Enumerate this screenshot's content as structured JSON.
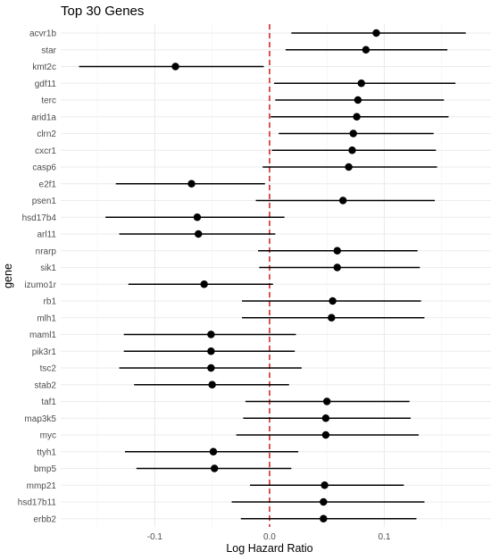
{
  "chart_data": {
    "type": "forest",
    "title": "Top 30 Genes",
    "xlabel": "Log Hazard Ratio",
    "ylabel": "gene",
    "xlim": [
      -0.182,
      0.193
    ],
    "xticks": [
      -0.1,
      0.0,
      0.1
    ],
    "xtick_labels": [
      "-0.1",
      "0.0",
      "0.1"
    ],
    "reference_line": 0.0,
    "reference_color": "#d62728",
    "grid": true,
    "legend": "none",
    "genes": [
      {
        "name": "acvr1b",
        "estimate": 0.093,
        "lower": 0.019,
        "upper": 0.171
      },
      {
        "name": "star",
        "estimate": 0.084,
        "lower": 0.014,
        "upper": 0.155
      },
      {
        "name": "kmt2c",
        "estimate": -0.082,
        "lower": -0.166,
        "upper": -0.005
      },
      {
        "name": "gdf11",
        "estimate": 0.08,
        "lower": 0.004,
        "upper": 0.162
      },
      {
        "name": "terc",
        "estimate": 0.077,
        "lower": 0.005,
        "upper": 0.152
      },
      {
        "name": "arid1a",
        "estimate": 0.076,
        "lower": 0.001,
        "upper": 0.156
      },
      {
        "name": "clrn2",
        "estimate": 0.073,
        "lower": 0.008,
        "upper": 0.143
      },
      {
        "name": "cxcr1",
        "estimate": 0.072,
        "lower": 0.002,
        "upper": 0.145
      },
      {
        "name": "casp6",
        "estimate": 0.069,
        "lower": -0.006,
        "upper": 0.146
      },
      {
        "name": "e2f1",
        "estimate": -0.068,
        "lower": -0.134,
        "upper": -0.004
      },
      {
        "name": "psen1",
        "estimate": 0.064,
        "lower": -0.012,
        "upper": 0.144
      },
      {
        "name": "hsd17b4",
        "estimate": -0.063,
        "lower": -0.143,
        "upper": 0.013
      },
      {
        "name": "arl11",
        "estimate": -0.062,
        "lower": -0.131,
        "upper": 0.005
      },
      {
        "name": "nrarp",
        "estimate": 0.059,
        "lower": -0.01,
        "upper": 0.129
      },
      {
        "name": "sik1",
        "estimate": 0.059,
        "lower": -0.009,
        "upper": 0.131
      },
      {
        "name": "izumo1r",
        "estimate": -0.057,
        "lower": -0.123,
        "upper": 0.003
      },
      {
        "name": "rb1",
        "estimate": 0.055,
        "lower": -0.024,
        "upper": 0.132
      },
      {
        "name": "mlh1",
        "estimate": 0.054,
        "lower": -0.024,
        "upper": 0.135
      },
      {
        "name": "maml1",
        "estimate": -0.051,
        "lower": -0.127,
        "upper": 0.023
      },
      {
        "name": "pik3r1",
        "estimate": -0.051,
        "lower": -0.127,
        "upper": 0.022
      },
      {
        "name": "tsc2",
        "estimate": -0.051,
        "lower": -0.131,
        "upper": 0.028
      },
      {
        "name": "stab2",
        "estimate": -0.05,
        "lower": -0.118,
        "upper": 0.017
      },
      {
        "name": "taf1",
        "estimate": 0.05,
        "lower": -0.021,
        "upper": 0.122
      },
      {
        "name": "map3k5",
        "estimate": 0.049,
        "lower": -0.023,
        "upper": 0.123
      },
      {
        "name": "myc",
        "estimate": 0.049,
        "lower": -0.029,
        "upper": 0.13
      },
      {
        "name": "ttyh1",
        "estimate": -0.049,
        "lower": -0.126,
        "upper": 0.025
      },
      {
        "name": "bmp5",
        "estimate": -0.048,
        "lower": -0.116,
        "upper": 0.019
      },
      {
        "name": "mmp21",
        "estimate": 0.048,
        "lower": -0.017,
        "upper": 0.117
      },
      {
        "name": "hsd17b11",
        "estimate": 0.047,
        "lower": -0.033,
        "upper": 0.135
      },
      {
        "name": "erbb2",
        "estimate": 0.047,
        "lower": -0.025,
        "upper": 0.128
      }
    ]
  },
  "colors": {
    "point": "#000000",
    "interval": "#000000",
    "grid_major": "#ebebeb",
    "grid_minor": "#f5f5f5",
    "text": "#4d4d4d"
  }
}
